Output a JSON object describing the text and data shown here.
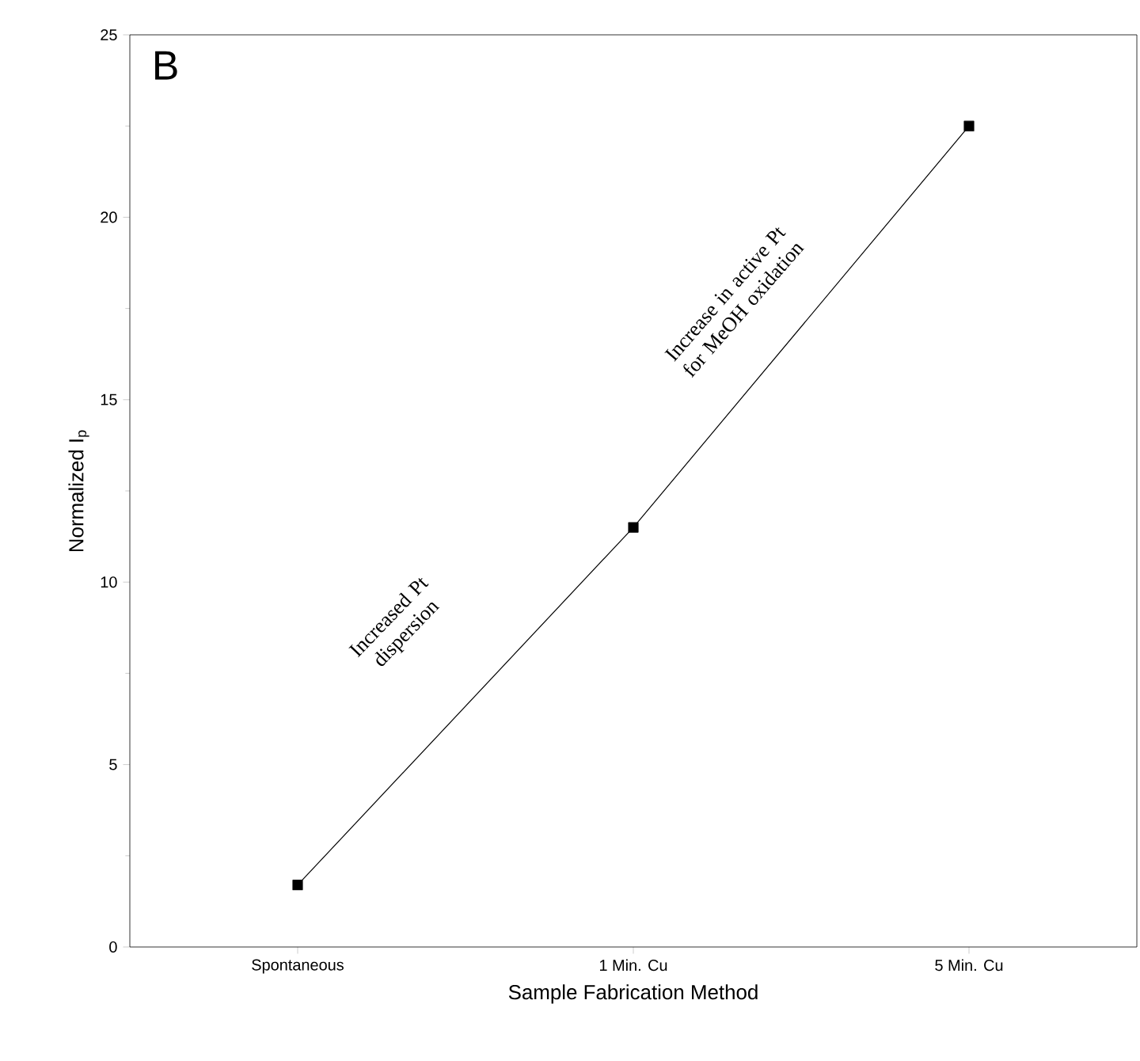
{
  "chart_data": {
    "type": "line",
    "xlabel": "Sample Fabrication Method",
    "ylabel": "Normalized I$_{p}$",
    "categories": [
      "Spontaneous",
      "1 Min. Cu",
      "5 Min. Cu"
    ],
    "series": [
      {
        "color": "#000000",
        "values": [
          1.7,
          11.5,
          22.5
        ]
      }
    ],
    "ylim": [
      0,
      25
    ],
    "yticks": [
      0,
      5,
      10,
      15,
      20,
      25
    ],
    "marker": "square",
    "line_style": "solid",
    "grid": false,
    "annotations": [
      "B",
      "Increased Pt dispersion",
      "Increase in active Pt for MeOH oxidation"
    ]
  }
}
